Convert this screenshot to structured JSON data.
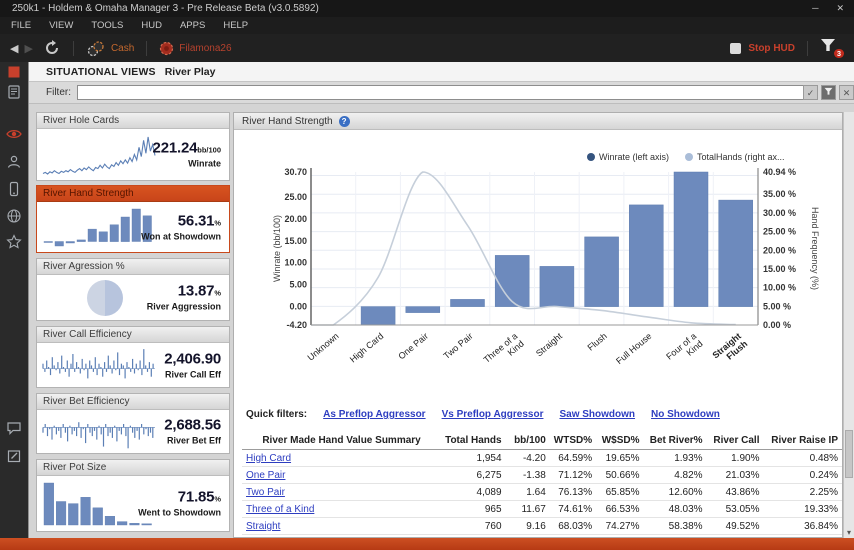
{
  "window": {
    "title": "250k1 - Holdem & Omaha Manager 3 - Pre Release Beta (v3.0.5892)",
    "menu": [
      "FILE",
      "VIEW",
      "TOOLS",
      "HUD",
      "APPS",
      "HELP"
    ],
    "toolbar": {
      "cash_label": "Cash",
      "player_label": "Filamona26",
      "stop_hud_label": "Stop HUD",
      "filter_badge": "3"
    },
    "controls": {
      "minimize": "─",
      "close": "✕"
    }
  },
  "sidebar": {
    "icons": [
      "app-indicator",
      "reports",
      "review-eye",
      "players",
      "mobile",
      "web",
      "favorites-star"
    ],
    "bottom_icons": [
      "chat",
      "notes"
    ]
  },
  "page": {
    "section_title": "SITUATIONAL VIEWS",
    "section_subtitle": "River Play",
    "filter_label": "Filter:",
    "filter_value": ""
  },
  "cards": [
    {
      "title": "River Hole Cards",
      "value": "221.24",
      "unit": "bb/100",
      "caption": "Winrate",
      "type": "line",
      "selected": false,
      "spark": [
        2.1,
        2.3,
        2.0,
        2.4,
        2.2,
        2.6,
        2.3,
        2.1,
        2.5,
        2.3,
        2.6,
        2.4,
        2.8,
        2.5,
        2.3,
        2.7,
        3.0,
        2.6,
        3.1,
        2.8,
        3.3,
        2.9,
        2.6,
        3.2,
        3.0,
        3.6,
        3.1,
        3.8,
        3.3,
        3.0,
        3.7,
        3.4,
        4.1,
        3.6,
        4.4,
        3.9,
        4.6,
        4.0,
        5.0,
        4.3,
        5.6,
        4.6,
        6.9,
        5.2,
        8.2,
        5.8,
        8.8,
        6.2,
        7.4,
        5.4
      ]
    },
    {
      "title": "River Hand Strength",
      "value": "56.31",
      "unit": "%",
      "caption": "Won at Showdown",
      "type": "bar",
      "selected": true,
      "spark": [
        -0.4,
        -4.2,
        -1.4,
        1.6,
        11.7,
        9.2,
        15.9,
        23.2,
        30.7,
        24.3
      ]
    },
    {
      "title": "River Agression %",
      "value": "13.87",
      "unit": "%",
      "caption": "River Aggression",
      "type": "pie",
      "selected": false,
      "spark": [
        50,
        50
      ]
    },
    {
      "title": "River Call Efficiency",
      "value": "2,406.90",
      "unit": "",
      "caption": "River Call Eff",
      "type": "spikes",
      "selected": false,
      "spark": [
        3,
        -2,
        5,
        1,
        -4,
        7,
        2,
        -1,
        4,
        -3,
        8,
        1,
        -2,
        5,
        -5,
        3,
        9,
        -2,
        4,
        1,
        -3,
        6,
        -1,
        3,
        -6,
        5,
        2,
        -2,
        7,
        -4,
        3,
        1,
        -5,
        4,
        -2,
        8,
        2,
        -3,
        5,
        -1,
        10,
        -4,
        3,
        2,
        -6,
        4,
        1,
        -2,
        6,
        -3,
        3,
        -1,
        5,
        -4,
        12,
        2,
        -2,
        4,
        -5,
        3
      ]
    },
    {
      "title": "River Bet Efficiency",
      "value": "2,688.56",
      "unit": "",
      "caption": "River Bet Eff",
      "type": "spikes-down",
      "selected": false,
      "spark": [
        -3,
        2,
        -5,
        -1,
        -7,
        1,
        -4,
        -2,
        -6,
        2,
        -3,
        -8,
        1,
        -4,
        -2,
        -5,
        3,
        -6,
        -1,
        -9,
        2,
        -3,
        -5,
        -2,
        -7,
        1,
        -4,
        -11,
        2,
        -5,
        -3,
        -6,
        1,
        -8,
        -2,
        -4,
        2,
        -5,
        -12,
        1,
        -3,
        -6,
        -2,
        -7,
        2,
        -4,
        -1,
        -5,
        -3,
        -6
      ]
    },
    {
      "title": "River Pot Size",
      "value": "71.85",
      "unit": "%",
      "caption": "Went to Showdown",
      "type": "bar",
      "selected": false,
      "spark": [
        10,
        5.6,
        5.1,
        6.6,
        4.1,
        2.1,
        0.8,
        0.4,
        0.3
      ]
    }
  ],
  "chart_data": {
    "type": "bar+line",
    "title": "River Hand Strength",
    "categories": [
      "Unknown",
      "High Card",
      "One Pair",
      "Two Pair",
      "Three of a Kind",
      "Straight",
      "Flush",
      "Full House",
      "Four of a Kind",
      "Straight Flush"
    ],
    "series": [
      {
        "name": "Winrate (left axis)",
        "type": "bar",
        "axis": "left",
        "values": [
          null,
          -4.2,
          -1.38,
          1.64,
          11.67,
          9.16,
          15.9,
          23.2,
          30.7,
          24.3
        ]
      },
      {
        "name": "TotalHands (right ax...",
        "type": "line",
        "axis": "right",
        "values": [
          0,
          12.75,
          40.94,
          26.68,
          6.3,
          4.96,
          3.9,
          2.2,
          0.6,
          0.1
        ]
      }
    ],
    "left_axis": {
      "label": "Winrate (bb/100)",
      "min": -4.2,
      "max": 30.7,
      "ticks": [
        "30.70",
        "25.00",
        "20.00",
        "15.00",
        "10.00",
        "5.00",
        "0.00",
        "-4.20"
      ]
    },
    "right_axis": {
      "label": "Hand Frequency (%)",
      "min": 0,
      "max": 40.94,
      "ticks": [
        "40.94 %",
        "35.00 %",
        "30.00 %",
        "25.00 %",
        "20.00 %",
        "15.00 %",
        "10.00 %",
        "5.00 %",
        "0.00 %"
      ]
    },
    "grid": true,
    "legend_position": "top-right"
  },
  "quick_filters": {
    "label": "Quick filters:",
    "links": [
      "As Preflop Aggressor",
      "Vs Preflop Aggressor",
      "Saw Showdown",
      "No Showdown"
    ]
  },
  "table": {
    "columns": [
      "River Made Hand Value Summary",
      "Total Hands",
      "bb/100",
      "WTSD%",
      "W$SD%",
      "Bet River%",
      "River Call",
      "River Raise IP"
    ],
    "rows": [
      [
        "High Card",
        "1,954",
        "-4.20",
        "64.59%",
        "19.65%",
        "1.93%",
        "1.90%",
        "0.48%"
      ],
      [
        "One Pair",
        "6,275",
        "-1.38",
        "71.12%",
        "50.66%",
        "4.82%",
        "21.03%",
        "0.24%"
      ],
      [
        "Two Pair",
        "4,089",
        "1.64",
        "76.13%",
        "65.85%",
        "12.60%",
        "43.86%",
        "2.25%"
      ],
      [
        "Three of a Kind",
        "965",
        "11.67",
        "74.61%",
        "66.53%",
        "48.03%",
        "53.05%",
        "19.33%"
      ],
      [
        "Straight",
        "760",
        "9.16",
        "68.03%",
        "74.27%",
        "58.38%",
        "49.52%",
        "36.84%"
      ]
    ]
  },
  "colors": {
    "accent": "#c8491c",
    "bar": "#6d8abd",
    "bar_border": "#5d7cb0",
    "curve": "#c6cfda",
    "legend_winrate": "#35547f",
    "legend_totalhands": "#aabdd8",
    "spark": "#5b7fb5",
    "link": "#2d3dc0",
    "red": "#c8402c",
    "pie_left": "#ccd4e3",
    "pie_right": "#b7c4dd"
  }
}
